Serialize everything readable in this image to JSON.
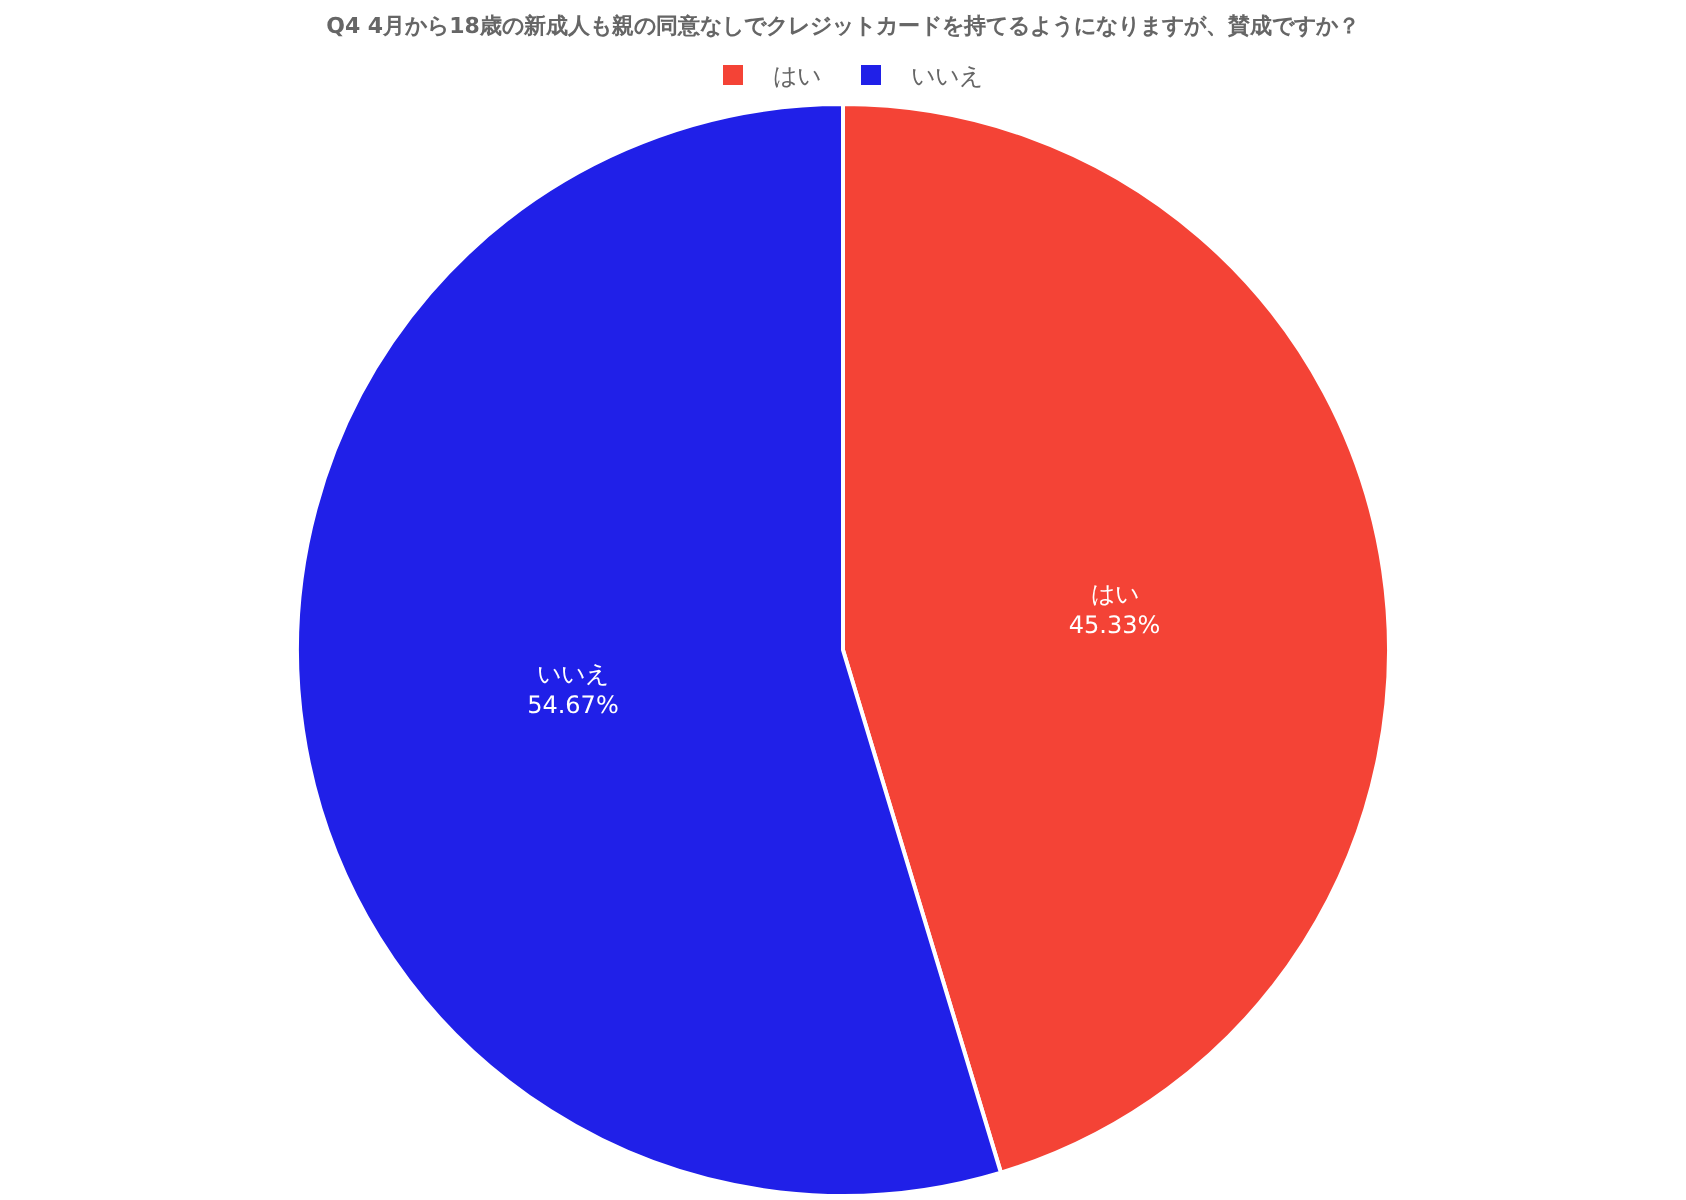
{
  "chart_data": {
    "type": "pie",
    "title": "Q4 4月から18歳の新成人も親の同意なしでクレジットカードを持てるようになりますが、賛成ですか？",
    "categories": [
      "はい",
      "いいえ"
    ],
    "values": [
      45.33,
      54.67
    ],
    "colors": [
      "#f44336",
      "#2020e8"
    ],
    "value_labels": [
      "45.33%",
      "54.67%"
    ],
    "legend": "top"
  }
}
